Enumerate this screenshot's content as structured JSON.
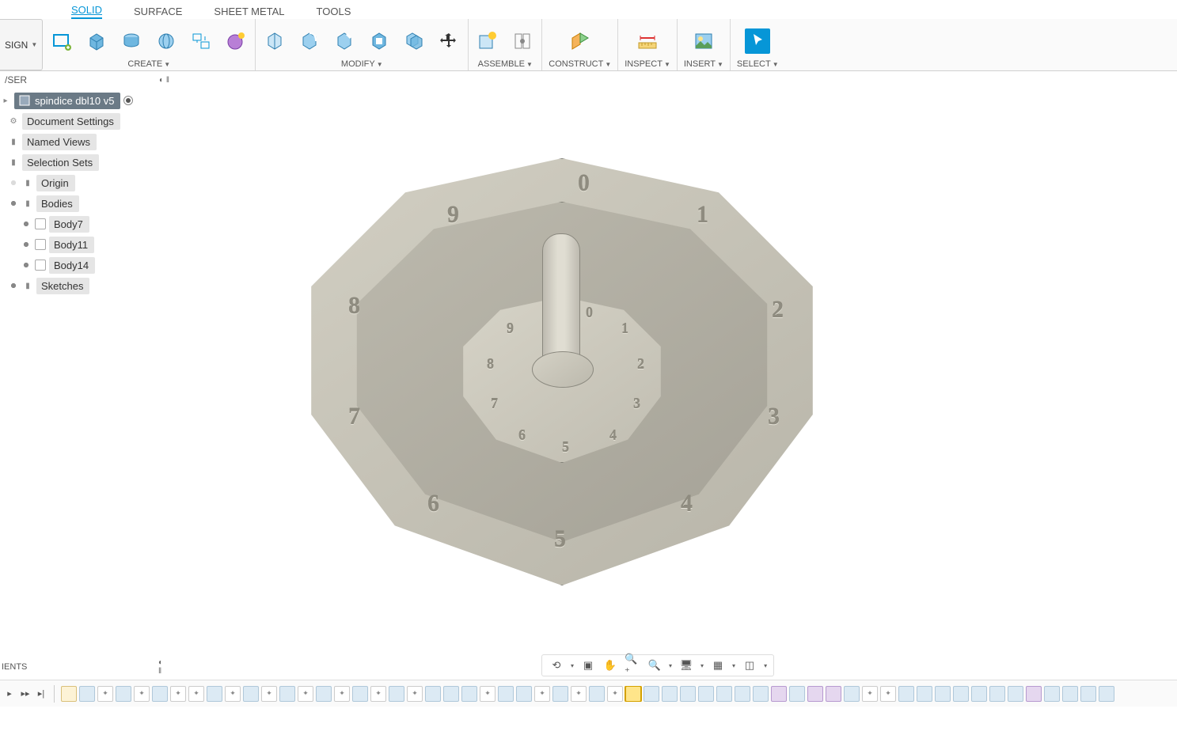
{
  "workspace_button": "SIGN",
  "tabs": [
    "SOLID",
    "SURFACE",
    "SHEET METAL",
    "TOOLS"
  ],
  "active_tab": "SOLID",
  "ribbon_groups": {
    "create": "CREATE",
    "modify": "MODIFY",
    "assemble": "ASSEMBLE",
    "construct": "CONSTRUCT",
    "inspect": "INSPECT",
    "insert": "INSERT",
    "select": "SELECT"
  },
  "browser_title": "/SER",
  "root_item": "spindice dbl10 v5",
  "tree": {
    "doc_settings": "Document Settings",
    "named_views": "Named Views",
    "selection_sets": "Selection Sets",
    "origin": "Origin",
    "bodies_folder": "Bodies",
    "bodies": [
      "Body7",
      "Body11",
      "Body14"
    ],
    "sketches": "Sketches"
  },
  "comments_label": "IENTS",
  "model_numbers_outer": [
    "0",
    "1",
    "2",
    "3",
    "4",
    "5",
    "6",
    "7",
    "8",
    "9"
  ],
  "model_numbers_inner": [
    "0",
    "1",
    "2",
    "3",
    "4",
    "5",
    "6",
    "7",
    "8",
    "9"
  ],
  "colors": {
    "accent": "#0696d7",
    "model_surface": "#c7c4b8",
    "model_dark": "#a5a297",
    "timeline_feature": "#dceaf4",
    "timeline_current": "#ffe58a"
  },
  "timeline": {
    "count": 58,
    "current_index": 31
  },
  "view_tools": [
    "orbit",
    "fit",
    "pan",
    "zoom",
    "zoom-window",
    "display",
    "grid",
    "layout"
  ]
}
